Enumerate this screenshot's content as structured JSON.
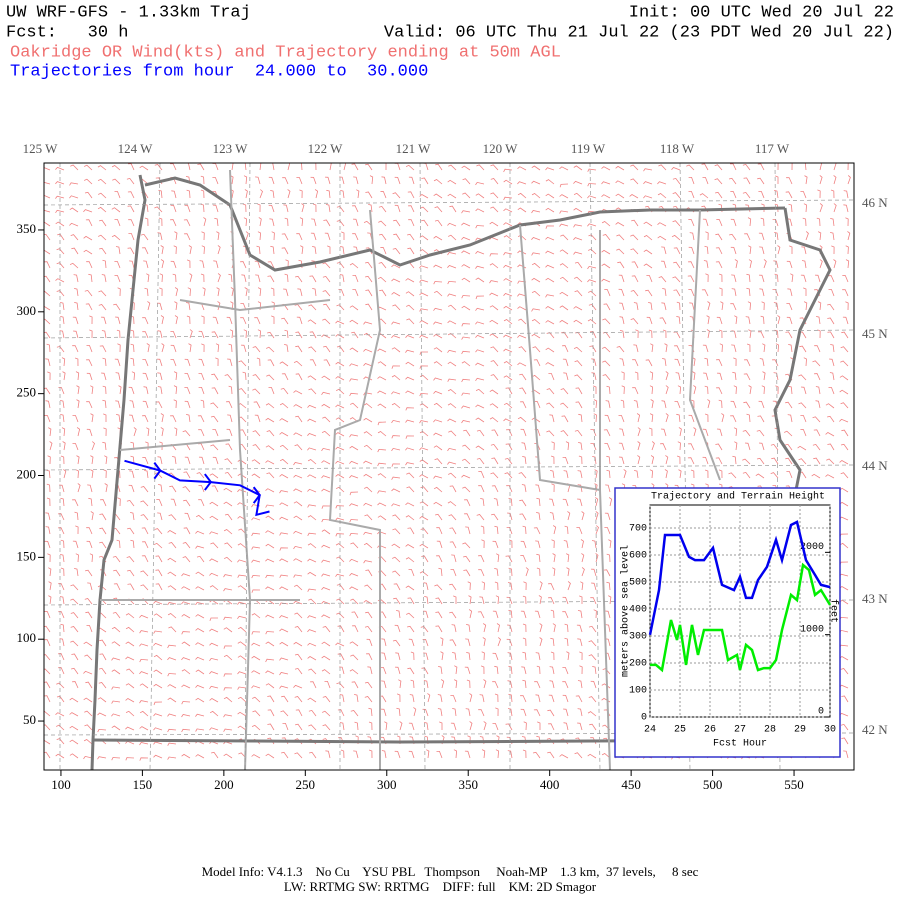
{
  "header": {
    "title": "UW WRF-GFS - 1.33km Traj",
    "init": "Init: 00 UTC Wed 20 Jul 22",
    "fcst": "Fcst:   30 h",
    "valid": "Valid: 06 UTC Thu 21 Jul 22 (23 PDT Wed 20 Jul 22)",
    "subtitle": "Oakridge OR Wind(kts) and Trajectory ending at 50m AGL",
    "trajectory_hours": "Trajectories from hour  24.000 to  30.000"
  },
  "map": {
    "xlim": [
      89.6,
      586.8
    ],
    "ylim": [
      20.1,
      390.9
    ],
    "xticks": [
      100,
      150,
      200,
      250,
      300,
      350,
      400,
      450,
      500,
      550
    ],
    "yticks": [
      50,
      100,
      150,
      200,
      250,
      300,
      350
    ],
    "lon_labels": [
      "125 W",
      "124 W",
      "123 W",
      "122 W",
      "121 W",
      "120 W",
      "119 W",
      "118 W",
      "117 W"
    ],
    "lat_labels": [
      "46 N",
      "45 N",
      "44 N",
      "43 N",
      "42 N"
    ],
    "trajectory": {
      "color": "#0000ff",
      "x": [
        139,
        161,
        173,
        192,
        210,
        222,
        220,
        228
      ],
      "y": [
        209,
        203,
        197,
        196,
        194,
        188,
        176,
        178
      ]
    }
  },
  "chart_data": {
    "type": "line",
    "title": "Trajectory and Terrain Height",
    "xlabel": "Fcst Hour",
    "ylabel": "meters above sea level",
    "y2label": "feet",
    "xlim": [
      24,
      30
    ],
    "xticks": [
      24,
      25,
      26,
      27,
      28,
      29,
      30
    ],
    "ylim": [
      0,
      785
    ],
    "yticks": [
      0,
      100,
      200,
      300,
      400,
      500,
      600,
      700
    ],
    "y2lim": [
      0,
      2575
    ],
    "y2ticks": [
      0,
      1000,
      2000
    ],
    "grid": true,
    "series": [
      {
        "color": "#0000ee",
        "x": [
          24,
          24.3,
          24.5,
          25,
          25.3,
          25.5,
          25.8,
          26.1,
          26.4,
          26.8,
          27,
          27.2,
          27.4,
          27.6,
          27.9,
          28.2,
          28.4,
          28.7,
          28.9,
          29.2,
          29.5,
          29.7,
          30
        ],
        "values": [
          304,
          470,
          674,
          674,
          593,
          581,
          581,
          626,
          489,
          470,
          519,
          441,
          441,
          507,
          556,
          656,
          581,
          711,
          722,
          581,
          526,
          489,
          481
        ]
      },
      {
        "color": "#00ee00",
        "x": [
          24,
          24.2,
          24.4,
          24.7,
          24.9,
          25,
          25.2,
          25.4,
          25.6,
          25.8,
          26.1,
          26.4,
          26.6,
          26.9,
          27,
          27.2,
          27.4,
          27.6,
          27.8,
          28,
          28.2,
          28.4,
          28.7,
          28.9,
          29.1,
          29.3,
          29.5,
          29.7,
          30
        ],
        "values": [
          193,
          193,
          174,
          359,
          285,
          341,
          193,
          341,
          230,
          322,
          322,
          322,
          211,
          230,
          174,
          267,
          248,
          174,
          181,
          181,
          211,
          322,
          452,
          433,
          563,
          544,
          452,
          470,
          415
        ]
      }
    ]
  },
  "footer": {
    "line1": "Model Info: V4.1.3    No Cu    YSU PBL   Thompson     Noah-MP    1.3 km,  37 levels,     8 sec",
    "line2": "LW: RRTMG SW: RRTMG    DIFF: full    KM: 2D Smagor"
  }
}
